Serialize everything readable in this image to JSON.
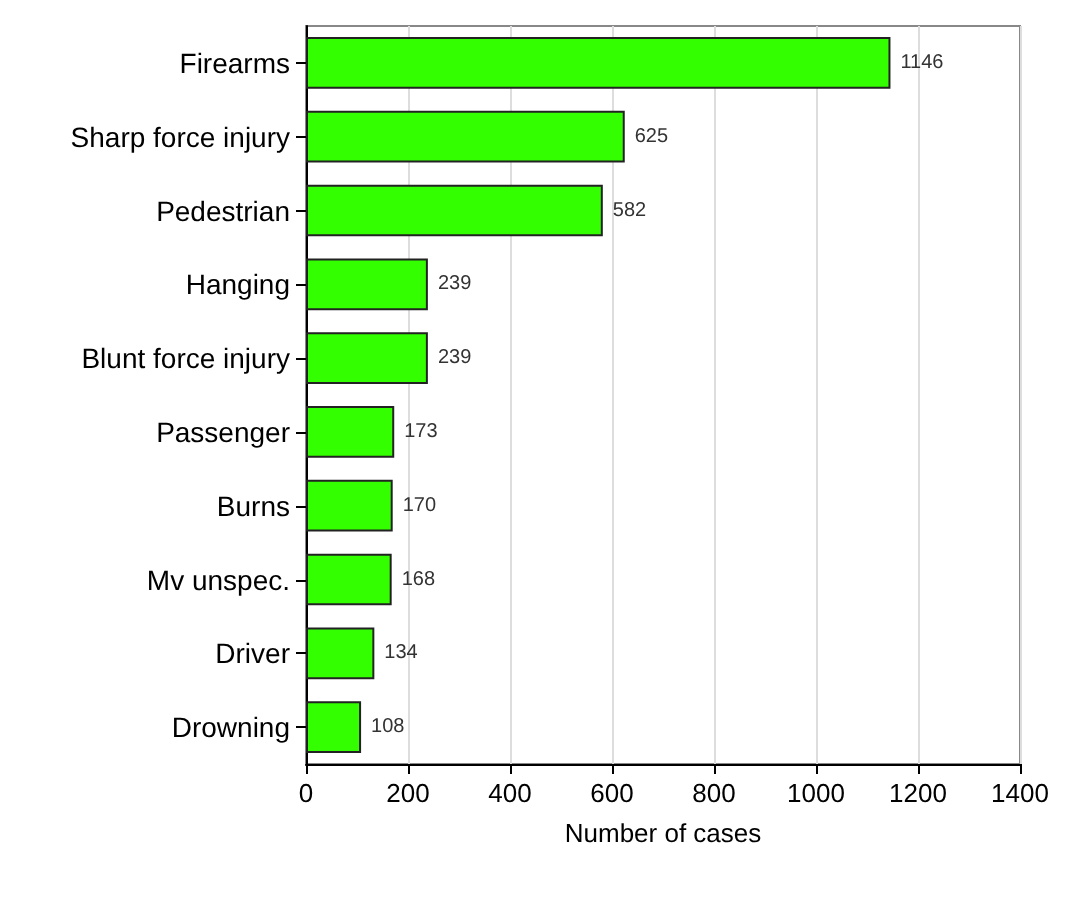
{
  "chart_data": {
    "type": "bar",
    "orientation": "horizontal",
    "xlabel": "Number of cases",
    "categories": [
      "Firearms",
      "Sharp force injury",
      "Pedestrian",
      "Hanging",
      "Blunt force injury",
      "Passenger",
      "Burns",
      "Mv unspec.",
      "Driver",
      "Drowning"
    ],
    "values": [
      1146,
      625,
      582,
      239,
      239,
      173,
      170,
      168,
      134,
      108
    ],
    "color": "#33ff00",
    "xlim": [
      0,
      1400
    ],
    "xticks": [
      0,
      200,
      400,
      600,
      800,
      1000,
      1200,
      1400
    ],
    "grid": "x",
    "data_labels": true
  }
}
